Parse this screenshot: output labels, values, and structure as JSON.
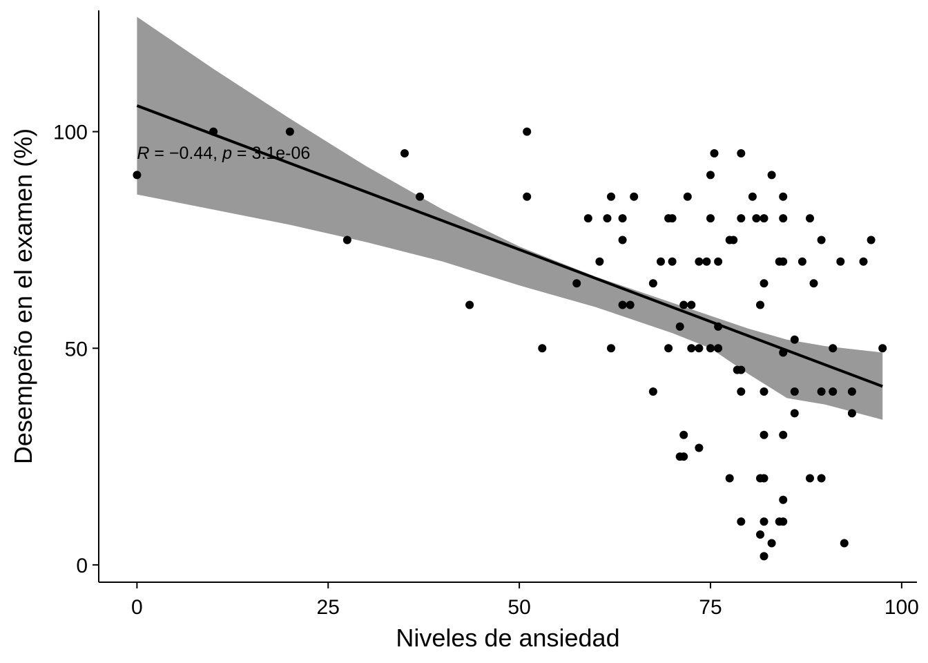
{
  "chart_data": {
    "type": "scatter",
    "title": "",
    "xlabel": "Niveles de ansiedad",
    "ylabel": "Desempeño en el examen (%)",
    "xlim": [
      -5,
      102
    ],
    "ylim": [
      -4,
      128
    ],
    "x_ticks": [
      0,
      25,
      50,
      75,
      100
    ],
    "y_ticks": [
      0,
      50,
      100
    ],
    "grid": false,
    "legend": "none",
    "point_color": "#000000",
    "band_color": "#999999",
    "line_color": "#000000",
    "annotation": {
      "r_symbol": "R",
      "r_text": " = −0.44, ",
      "p_symbol": "p",
      "p_text": " = 3.1e-06",
      "x": 0,
      "y": 95
    },
    "regression": {
      "x": [
        0,
        97.5
      ],
      "fit": [
        106,
        41.2
      ],
      "band_x": [
        0,
        10,
        20,
        30,
        40,
        50,
        60,
        70,
        75,
        80,
        85,
        90,
        97.5
      ],
      "band_upper": [
        126.5,
        114.5,
        103,
        92,
        82,
        73.5,
        66.5,
        60.5,
        57.5,
        54.5,
        52,
        50.5,
        49
      ],
      "band_lower": [
        85.5,
        82,
        78.5,
        74.5,
        70,
        64.5,
        59.5,
        53.5,
        50,
        44,
        38.5,
        37,
        33.5
      ]
    },
    "points": [
      {
        "x": 0,
        "y": 90
      },
      {
        "x": 10,
        "y": 100
      },
      {
        "x": 20,
        "y": 100
      },
      {
        "x": 27.5,
        "y": 75
      },
      {
        "x": 35,
        "y": 95
      },
      {
        "x": 37,
        "y": 85
      },
      {
        "x": 43.5,
        "y": 60
      },
      {
        "x": 51,
        "y": 100
      },
      {
        "x": 51,
        "y": 85
      },
      {
        "x": 53,
        "y": 50
      },
      {
        "x": 57.5,
        "y": 65
      },
      {
        "x": 59,
        "y": 80
      },
      {
        "x": 60.5,
        "y": 70
      },
      {
        "x": 61.5,
        "y": 80
      },
      {
        "x": 62,
        "y": 85
      },
      {
        "x": 62,
        "y": 50
      },
      {
        "x": 63.5,
        "y": 80
      },
      {
        "x": 63.5,
        "y": 75
      },
      {
        "x": 63.5,
        "y": 60
      },
      {
        "x": 64.5,
        "y": 60
      },
      {
        "x": 65,
        "y": 85
      },
      {
        "x": 67.5,
        "y": 65
      },
      {
        "x": 67.5,
        "y": 40
      },
      {
        "x": 68.5,
        "y": 70
      },
      {
        "x": 69.5,
        "y": 80
      },
      {
        "x": 69.5,
        "y": 50
      },
      {
        "x": 70,
        "y": 80
      },
      {
        "x": 70,
        "y": 70
      },
      {
        "x": 71,
        "y": 55
      },
      {
        "x": 71,
        "y": 25
      },
      {
        "x": 71.5,
        "y": 60
      },
      {
        "x": 71.5,
        "y": 30
      },
      {
        "x": 71.5,
        "y": 25
      },
      {
        "x": 72,
        "y": 85
      },
      {
        "x": 72.5,
        "y": 60
      },
      {
        "x": 72.5,
        "y": 50
      },
      {
        "x": 73.5,
        "y": 70
      },
      {
        "x": 73.5,
        "y": 50
      },
      {
        "x": 73.5,
        "y": 27
      },
      {
        "x": 74.5,
        "y": 70
      },
      {
        "x": 75,
        "y": 90
      },
      {
        "x": 75,
        "y": 80
      },
      {
        "x": 75,
        "y": 50
      },
      {
        "x": 75.5,
        "y": 95
      },
      {
        "x": 76,
        "y": 70
      },
      {
        "x": 76,
        "y": 55
      },
      {
        "x": 76,
        "y": 50
      },
      {
        "x": 77.5,
        "y": 75
      },
      {
        "x": 77.5,
        "y": 20
      },
      {
        "x": 78,
        "y": 75
      },
      {
        "x": 78.5,
        "y": 45
      },
      {
        "x": 79,
        "y": 95
      },
      {
        "x": 79,
        "y": 80
      },
      {
        "x": 79,
        "y": 45
      },
      {
        "x": 79,
        "y": 40
      },
      {
        "x": 79,
        "y": 10
      },
      {
        "x": 80.5,
        "y": 85
      },
      {
        "x": 81,
        "y": 80
      },
      {
        "x": 81.5,
        "y": 60
      },
      {
        "x": 81.5,
        "y": 20
      },
      {
        "x": 81.5,
        "y": 7
      },
      {
        "x": 82,
        "y": 80
      },
      {
        "x": 82,
        "y": 65
      },
      {
        "x": 82,
        "y": 40
      },
      {
        "x": 82,
        "y": 30
      },
      {
        "x": 82,
        "y": 20
      },
      {
        "x": 82,
        "y": 10
      },
      {
        "x": 82,
        "y": 2
      },
      {
        "x": 83,
        "y": 90
      },
      {
        "x": 83,
        "y": 5
      },
      {
        "x": 84,
        "y": 70
      },
      {
        "x": 84,
        "y": 10
      },
      {
        "x": 84.5,
        "y": 85
      },
      {
        "x": 84.5,
        "y": 80
      },
      {
        "x": 84.5,
        "y": 70
      },
      {
        "x": 84.5,
        "y": 49
      },
      {
        "x": 84.5,
        "y": 30
      },
      {
        "x": 84.5,
        "y": 15
      },
      {
        "x": 84.5,
        "y": 10
      },
      {
        "x": 86,
        "y": 52
      },
      {
        "x": 86,
        "y": 40
      },
      {
        "x": 86,
        "y": 35
      },
      {
        "x": 87,
        "y": 70
      },
      {
        "x": 88,
        "y": 80
      },
      {
        "x": 88,
        "y": 20
      },
      {
        "x": 88.5,
        "y": 65
      },
      {
        "x": 89.5,
        "y": 75
      },
      {
        "x": 89.5,
        "y": 40
      },
      {
        "x": 89.5,
        "y": 20
      },
      {
        "x": 91,
        "y": 50
      },
      {
        "x": 91,
        "y": 40
      },
      {
        "x": 92,
        "y": 70
      },
      {
        "x": 92.5,
        "y": 5
      },
      {
        "x": 93.5,
        "y": 40
      },
      {
        "x": 93.5,
        "y": 35
      },
      {
        "x": 95,
        "y": 70
      },
      {
        "x": 96,
        "y": 75
      },
      {
        "x": 97.5,
        "y": 50
      }
    ]
  }
}
